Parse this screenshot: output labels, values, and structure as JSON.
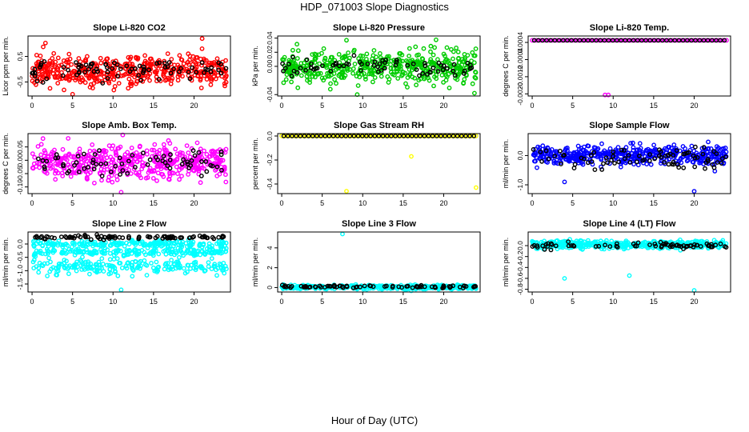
{
  "page": {
    "title": "HDP_071003  Slope Diagnostics",
    "xlabel": "Hour of Day (UTC)"
  },
  "chart_data": [
    {
      "type": "scatter",
      "title": "Slope Li-820 CO2",
      "ylabel": "Licor ppm per min.",
      "color": "#ff0000",
      "xlim": [
        -0.5,
        24.5
      ],
      "ylim": [
        -1.05,
        1.3
      ],
      "xticks": [
        0,
        5,
        10,
        15,
        20
      ],
      "yticks": [
        -0.5,
        0.5
      ],
      "ytick_labels": [
        "-0.5",
        "0.5"
      ],
      "gen": {
        "mode": "noise",
        "center": -0.05,
        "spread": 0.55,
        "n": 480,
        "bn": 80,
        "bCenter": 0.0,
        "bSpread": 0.45,
        "seed": 11
      },
      "outliers": [
        {
          "x": 21.0,
          "y": 1.2
        },
        {
          "x": 5.0,
          "y": -0.98
        }
      ]
    },
    {
      "type": "scatter",
      "title": "Slope Li-820 Pressure",
      "ylabel": "kPa per min.",
      "color": "#00cc00",
      "xlim": [
        -0.5,
        24.5
      ],
      "ylim": [
        -0.042,
        0.043
      ],
      "xticks": [
        0,
        5,
        10,
        15,
        20
      ],
      "yticks": [
        -0.04,
        0.0,
        0.02,
        0.04
      ],
      "ytick_labels": [
        "-0.04",
        "0.00",
        "0.02",
        "0.04"
      ],
      "gen": {
        "mode": "noise",
        "center": 0.0,
        "spread": 0.02,
        "n": 480,
        "bn": 70,
        "bCenter": 0.0,
        "bSpread": 0.012,
        "seed": 23
      },
      "outliers": [
        {
          "x": 8.0,
          "y": 0.037
        },
        {
          "x": 23.8,
          "y": -0.038
        }
      ]
    },
    {
      "type": "scatter",
      "title": "Slope Li-820 Temp.",
      "ylabel": "degrees C per min.",
      "color": "#ff00ff",
      "xlim": [
        -0.5,
        24.5
      ],
      "ylim": [
        -0.0021,
        0.0007
      ],
      "xticks": [
        0,
        5,
        10,
        15,
        20
      ],
      "yticks": [
        -0.002,
        -0.0012,
        -0.0004,
        0.0004
      ],
      "ytick_labels": [
        "-0.0020",
        "-0.0012",
        "-0.0004",
        "0.0004"
      ],
      "gen": {
        "mode": "flat",
        "value": 0.0005,
        "n": 48,
        "bn": 48,
        "seed": 5
      },
      "outliers": [
        {
          "x": 9.0,
          "y": -0.00205
        },
        {
          "x": 9.4,
          "y": -0.00205
        }
      ]
    },
    {
      "type": "scatter",
      "title": "Slope Amb. Box Temp.",
      "ylabel": "degrees C per min.",
      "color": "#ff00ff",
      "xlim": [
        -0.5,
        24.5
      ],
      "ylim": [
        -0.125,
        0.1
      ],
      "xticks": [
        0,
        5,
        10,
        15,
        20
      ],
      "yticks": [
        -0.1,
        -0.05,
        0.0,
        0.05
      ],
      "ytick_labels": [
        "-0.10",
        "-0.05",
        "0.00",
        "0.05"
      ],
      "gen": {
        "mode": "noise",
        "center": -0.01,
        "spread": 0.055,
        "n": 480,
        "bn": 70,
        "bCenter": -0.01,
        "bSpread": 0.045,
        "seed": 37
      },
      "outliers": [
        {
          "x": 11.2,
          "y": 0.095
        },
        {
          "x": 11.0,
          "y": -0.12
        }
      ]
    },
    {
      "type": "scatter",
      "title": "Slope Gas Stream RH",
      "ylabel": "percent per min.",
      "color": "#ffff00",
      "xlim": [
        -0.5,
        24.5
      ],
      "ylim": [
        -0.48,
        0.02
      ],
      "xticks": [
        0,
        5,
        10,
        15,
        20
      ],
      "yticks": [
        -0.4,
        -0.2,
        0.0
      ],
      "ytick_labels": [
        "-0.4",
        "-0.2",
        "0.0"
      ],
      "gen": {
        "mode": "flat",
        "value": 0.0,
        "n": 48,
        "bn": 48,
        "seed": 9
      },
      "outliers": [
        {
          "x": 8.0,
          "y": -0.46
        },
        {
          "x": 16.0,
          "y": -0.17
        },
        {
          "x": 24.0,
          "y": -0.43
        }
      ]
    },
    {
      "type": "scatter",
      "title": "Slope Sample Flow",
      "ylabel": "ml/min per min.",
      "color": "#0000ff",
      "xlim": [
        -0.5,
        24.5
      ],
      "ylim": [
        -1.3,
        0.75
      ],
      "xticks": [
        0,
        5,
        10,
        15,
        20
      ],
      "yticks": [
        -1.0,
        0.0
      ],
      "ytick_labels": [
        "-1.0",
        "0.0"
      ],
      "gen": {
        "mode": "noise",
        "center": 0.0,
        "spread": 0.3,
        "n": 460,
        "bn": 80,
        "bCenter": -0.1,
        "bSpread": 0.3,
        "seed": 41
      },
      "outliers": [
        {
          "x": 4.0,
          "y": -0.9
        },
        {
          "x": 20.0,
          "y": -1.22
        }
      ]
    },
    {
      "type": "scatter",
      "title": "Slope Line 2 Flow",
      "ylabel": "ml/min per min.",
      "color": "#00ffff",
      "xlim": [
        -0.5,
        24.5
      ],
      "ylim": [
        -1.8,
        0.45
      ],
      "xticks": [
        0,
        5,
        10,
        15,
        20
      ],
      "yticks": [
        -1.5,
        -1.0,
        -0.5,
        0.0
      ],
      "ytick_labels": [
        "-1.5",
        "-1.0",
        "-0.5",
        "0.0"
      ],
      "gen": {
        "mode": "bands",
        "bands": [
          [
            0.0,
            0.1
          ],
          [
            -0.3,
            0.12
          ],
          [
            -0.85,
            0.25
          ]
        ],
        "n": 600,
        "bn": 90,
        "bCenter": 0.25,
        "bSpread": 0.06,
        "seed": 53
      },
      "outliers": [
        {
          "x": 11.0,
          "y": -1.72
        }
      ]
    },
    {
      "type": "scatter",
      "title": "Slope Line 3 Flow",
      "ylabel": "ml/min per min.",
      "color": "#00ffff",
      "xlim": [
        -0.5,
        24.5
      ],
      "ylim": [
        -0.45,
        5.6
      ],
      "xticks": [
        0,
        5,
        10,
        15,
        20
      ],
      "yticks": [
        0,
        2,
        4
      ],
      "ytick_labels": [
        "0",
        "2",
        "4"
      ],
      "gen": {
        "mode": "noise",
        "center": 0.05,
        "spread": 0.18,
        "n": 500,
        "bn": 80,
        "bCenter": 0.1,
        "bSpread": 0.12,
        "seed": 61
      },
      "outliers": [
        {
          "x": 7.5,
          "y": 5.4
        }
      ]
    },
    {
      "type": "scatter",
      "title": "Slope Line 4 (LT) Flow",
      "ylabel": "ml/min per min.",
      "color": "#00ffff",
      "xlim": [
        -0.5,
        24.5
      ],
      "ylim": [
        -0.85,
        0.25
      ],
      "xticks": [
        0,
        5,
        10,
        15,
        20
      ],
      "yticks": [
        -0.8,
        -0.6,
        -0.4,
        -0.2,
        0.0
      ],
      "ytick_labels": [
        "-0.8",
        "-0.6",
        "-0.4",
        "-0.2",
        "0.0"
      ],
      "gen": {
        "mode": "noise",
        "center": 0.02,
        "spread": 0.06,
        "n": 480,
        "bn": 70,
        "bCenter": 0.0,
        "bSpread": 0.05,
        "seed": 71
      },
      "outliers": [
        {
          "x": 4.0,
          "y": -0.6
        },
        {
          "x": 12.0,
          "y": -0.55
        },
        {
          "x": 20.0,
          "y": -0.82
        }
      ]
    }
  ]
}
